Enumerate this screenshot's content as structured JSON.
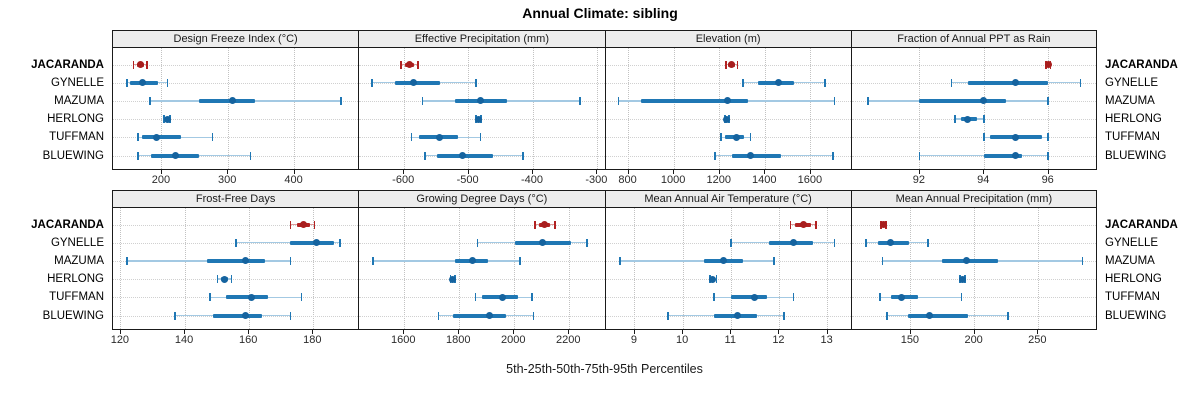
{
  "title": "Annual Climate: sibling",
  "footer": "5th-25th-50th-75th-95th Percentiles",
  "row_labels": [
    "JACARANDA",
    "GYNELLE",
    "MAZUMA",
    "HERLONG",
    "TUFFMAN",
    "BLUEWING"
  ],
  "highlighted_row": "JACARANDA",
  "colors": {
    "highlight": "#b22222",
    "highlight_whisker": "#dd9c9c",
    "highlight_dot": "#a81e1e",
    "series": "#1f77b4",
    "series_whisker": "#a3c9e3",
    "series_dot": "#15639f",
    "strip_bg": "#ededed",
    "panel_border": "#1a1a1a",
    "grid": "#c2c2c2"
  },
  "chart_data": {
    "type": "dotplot-percentiles",
    "percentile_levels": [
      5,
      25,
      50,
      75,
      95
    ],
    "legend_note": "whisker = 5th-95th, thick bar = 25th-75th, dot = median",
    "layout": {
      "rows": 2,
      "cols": 4,
      "grid": "dotted"
    },
    "panels": [
      {
        "title": "Design Freeze Index (°C)",
        "row": 0,
        "col": 0,
        "xlim": [
          127,
          496
        ],
        "ticks": [
          200,
          300,
          400
        ],
        "series": [
          [
            158,
            163,
            168,
            173,
            178
          ],
          [
            148,
            153,
            171,
            195,
            209
          ],
          [
            183,
            256,
            307,
            341,
            471
          ],
          [
            204,
            207,
            209,
            211,
            213
          ],
          [
            165,
            171,
            193,
            230,
            277
          ],
          [
            165,
            185,
            221,
            256,
            334
          ]
        ]
      },
      {
        "title": "Effective Precipitation (mm)",
        "row": 0,
        "col": 1,
        "xlim": [
          -669,
          -289
        ],
        "ticks": [
          -600,
          -500,
          -400,
          -300
        ],
        "series": [
          [
            -604,
            -598,
            -591,
            -584,
            -578
          ],
          [
            -649,
            -613,
            -585,
            -543,
            -488
          ],
          [
            -571,
            -520,
            -481,
            -440,
            -326
          ],
          [
            -488,
            -486,
            -484,
            -482,
            -480
          ],
          [
            -588,
            -577,
            -545,
            -515,
            -481
          ],
          [
            -567,
            -548,
            -509,
            -461,
            -415
          ]
        ]
      },
      {
        "title": "Elevation (m)",
        "row": 0,
        "col": 2,
        "xlim": [
          701,
          1775
        ],
        "ticks": [
          800,
          1000,
          1200,
          1400,
          1600
        ],
        "series": [
          [
            1230,
            1240,
            1255,
            1270,
            1280
          ],
          [
            1305,
            1370,
            1462,
            1530,
            1665
          ],
          [
            759,
            858,
            1237,
            1327,
            1705
          ],
          [
            1225,
            1229,
            1233,
            1238,
            1242
          ],
          [
            1207,
            1225,
            1276,
            1309,
            1337
          ],
          [
            1181,
            1254,
            1338,
            1472,
            1700
          ]
        ]
      },
      {
        "title": "Fraction of Annual PPT as Rain",
        "row": 0,
        "col": 3,
        "xlim": [
          89.9,
          97.5
        ],
        "ticks": [
          92,
          94,
          96
        ],
        "series": [
          [
            95.93,
            95.97,
            96,
            96.03,
            96.07
          ],
          [
            93,
            93.5,
            95,
            96,
            97
          ],
          [
            90.4,
            92,
            94,
            94.7,
            96
          ],
          [
            93.1,
            93.3,
            93.5,
            93.8,
            94
          ],
          [
            94,
            94.2,
            95,
            95.8,
            96
          ],
          [
            92,
            94,
            95,
            95.2,
            96
          ]
        ]
      },
      {
        "title": "Frost-Free Days",
        "row": 1,
        "col": 0,
        "xlim": [
          117.7,
          194
        ],
        "ticks": [
          120,
          140,
          160,
          180
        ],
        "series": [
          [
            173,
            175,
            177,
            179,
            180.5
          ],
          [
            156,
            173,
            181,
            186.5,
            188.5
          ],
          [
            122,
            147,
            159,
            165,
            173
          ],
          [
            150.3,
            151.5,
            152.5,
            153.7,
            154.7
          ],
          [
            148,
            153,
            161,
            166,
            176.5
          ],
          [
            137,
            149,
            159,
            164,
            173
          ]
        ]
      },
      {
        "title": "Growing Degree Days (°C)",
        "row": 1,
        "col": 1,
        "xlim": [
          1438,
          2328
        ],
        "ticks": [
          1600,
          1800,
          2000,
          2200
        ],
        "series": [
          [
            2077,
            2090,
            2113,
            2133,
            2150
          ],
          [
            1868,
            2003,
            2105,
            2207,
            2267
          ],
          [
            1488,
            1786,
            1849,
            1906,
            2023
          ],
          [
            1769,
            1774,
            1778,
            1782,
            1786
          ],
          [
            1861,
            1886,
            1958,
            2014,
            2066
          ],
          [
            1726,
            1780,
            1910,
            1973,
            2072
          ]
        ]
      },
      {
        "title": "Mean Annual Air Temperature (°C)",
        "row": 1,
        "col": 2,
        "xlim": [
          8.4,
          13.48
        ],
        "ticks": [
          9,
          10,
          11,
          12,
          13
        ],
        "series": [
          [
            12.24,
            12.33,
            12.52,
            12.67,
            12.77
          ],
          [
            11.0,
            11.8,
            12.3,
            12.7,
            13.15
          ],
          [
            8.7,
            10.45,
            10.85,
            11.25,
            11.9
          ],
          [
            10.57,
            10.6,
            10.63,
            10.67,
            10.7
          ],
          [
            10.65,
            11.0,
            11.5,
            11.75,
            12.3
          ],
          [
            9.7,
            10.65,
            11.15,
            11.55,
            12.1
          ]
        ]
      },
      {
        "title": "Mean Annual Precipitation (mm)",
        "row": 1,
        "col": 3,
        "xlim": [
          104,
          296
        ],
        "ticks": [
          150,
          200,
          250
        ],
        "series": [
          [
            127,
            128,
            129,
            130,
            131
          ],
          [
            115,
            124.5,
            134.5,
            149,
            164
          ],
          [
            128,
            175,
            194,
            219,
            285
          ],
          [
            189,
            190,
            191,
            192,
            193
          ],
          [
            126,
            135,
            143,
            156,
            190
          ],
          [
            131.5,
            148,
            165,
            195,
            226.5
          ]
        ]
      }
    ]
  }
}
